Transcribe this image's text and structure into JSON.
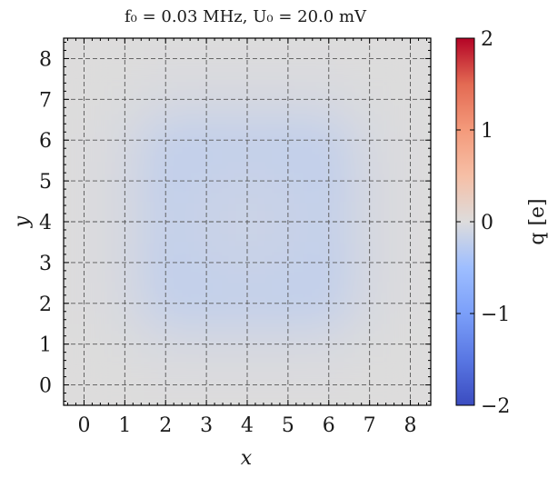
{
  "chart_data": {
    "type": "heatmap",
    "title": "f₀ = 0.03 MHz, U₀ = 20.0 mV",
    "xlabel": "x",
    "ylabel": "y",
    "xlim": [
      -0.5,
      8.5
    ],
    "ylim": [
      -0.5,
      8.5
    ],
    "x_ticks": [
      "0",
      "1",
      "2",
      "3",
      "4",
      "5",
      "6",
      "7",
      "8"
    ],
    "y_ticks": [
      "0",
      "1",
      "2",
      "3",
      "4",
      "5",
      "6",
      "7",
      "8"
    ],
    "grid": true,
    "colormap": "coolwarm",
    "colorbar": {
      "label": "q [e]",
      "range": [
        -2,
        2
      ],
      "ticks": [
        "−2",
        "−1",
        "0",
        "1",
        "2"
      ]
    },
    "z": [
      [
        0.0,
        0.0,
        -0.01,
        -0.01,
        -0.01,
        -0.01,
        -0.01,
        0.0,
        0.0
      ],
      [
        0.0,
        -0.02,
        -0.05,
        -0.06,
        -0.06,
        -0.06,
        -0.05,
        -0.02,
        0.0
      ],
      [
        -0.01,
        -0.05,
        -0.2,
        -0.22,
        -0.2,
        -0.22,
        -0.2,
        -0.05,
        -0.01
      ],
      [
        -0.01,
        -0.06,
        -0.22,
        -0.18,
        -0.16,
        -0.18,
        -0.22,
        -0.06,
        -0.01
      ],
      [
        -0.01,
        -0.06,
        -0.2,
        -0.16,
        -0.14,
        -0.16,
        -0.2,
        -0.06,
        -0.01
      ],
      [
        -0.01,
        -0.06,
        -0.22,
        -0.18,
        -0.16,
        -0.18,
        -0.22,
        -0.06,
        -0.01
      ],
      [
        -0.01,
        -0.05,
        -0.2,
        -0.22,
        -0.2,
        -0.22,
        -0.2,
        -0.05,
        -0.01
      ],
      [
        0.0,
        -0.02,
        -0.05,
        -0.06,
        -0.06,
        -0.06,
        -0.05,
        -0.02,
        0.0
      ],
      [
        0.0,
        0.0,
        -0.01,
        -0.01,
        -0.01,
        -0.01,
        -0.01,
        0.0,
        0.0
      ]
    ]
  }
}
